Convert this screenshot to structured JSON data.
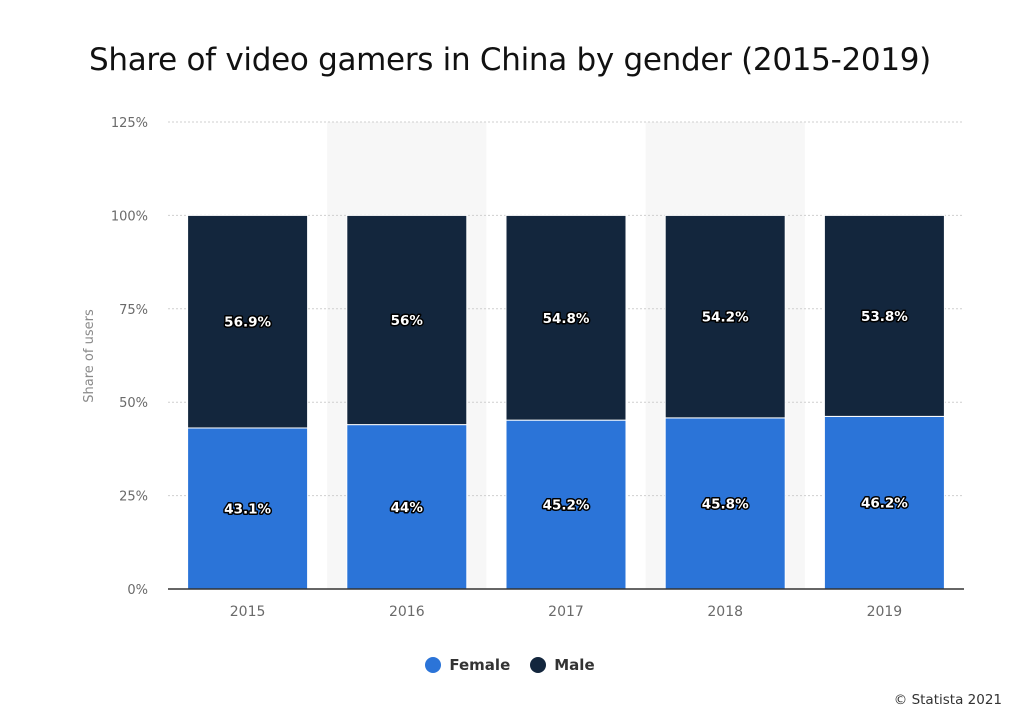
{
  "colors": {
    "female": "#2b74d8",
    "male": "#13263d",
    "grid": "#cfcfcf",
    "band": "#f7f7f7",
    "axis": "#333333"
  },
  "chart_data": {
    "type": "bar",
    "stacked": true,
    "title": "Share of video gamers in China by gender (2015-2019)",
    "xlabel": "",
    "ylabel": "Share of users",
    "categories": [
      "2015",
      "2016",
      "2017",
      "2018",
      "2019"
    ],
    "series": [
      {
        "name": "Female",
        "values": [
          43.1,
          44,
          45.2,
          45.8,
          46.2
        ],
        "labels": [
          "43.1%",
          "44%",
          "45.2%",
          "45.8%",
          "46.2%"
        ]
      },
      {
        "name": "Male",
        "values": [
          56.9,
          56,
          54.8,
          54.2,
          53.8
        ],
        "labels": [
          "56.9%",
          "56%",
          "54.8%",
          "54.2%",
          "53.8%"
        ]
      }
    ],
    "ylim": [
      0,
      125
    ],
    "yticks": [
      0,
      25,
      50,
      75,
      100,
      125
    ],
    "ytick_labels": [
      "0%",
      "25%",
      "50%",
      "75%",
      "100%",
      "125%"
    ],
    "grid": true,
    "legend_position": "bottom-center"
  },
  "legend": {
    "female_label": "Female",
    "male_label": "Male"
  },
  "credit": "© Statista 2021"
}
